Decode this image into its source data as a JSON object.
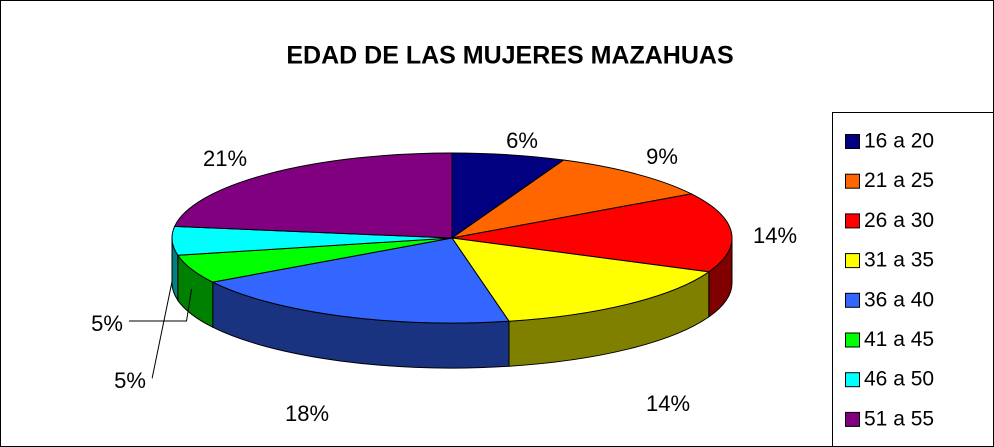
{
  "chart_data": {
    "type": "pie3d",
    "title": "EDAD DE LAS MUJERES MAZAHUAS",
    "categories": [
      "16 a 20",
      "21 a 25",
      "26 a 30",
      "31 a 35",
      "36 a 40",
      "41 a 45",
      "46 a 50",
      "51 a 55"
    ],
    "values": [
      6,
      9,
      14,
      14,
      18,
      5,
      5,
      21
    ],
    "value_labels": [
      "6%",
      "9%",
      "14%",
      "14%",
      "18%",
      "5%",
      "5%",
      "21%"
    ],
    "colors": [
      "#000080",
      "#ff6600",
      "#ff0000",
      "#ffff00",
      "#3366ff",
      "#00ff00",
      "#00ffff",
      "#800080"
    ],
    "legend": "right"
  }
}
